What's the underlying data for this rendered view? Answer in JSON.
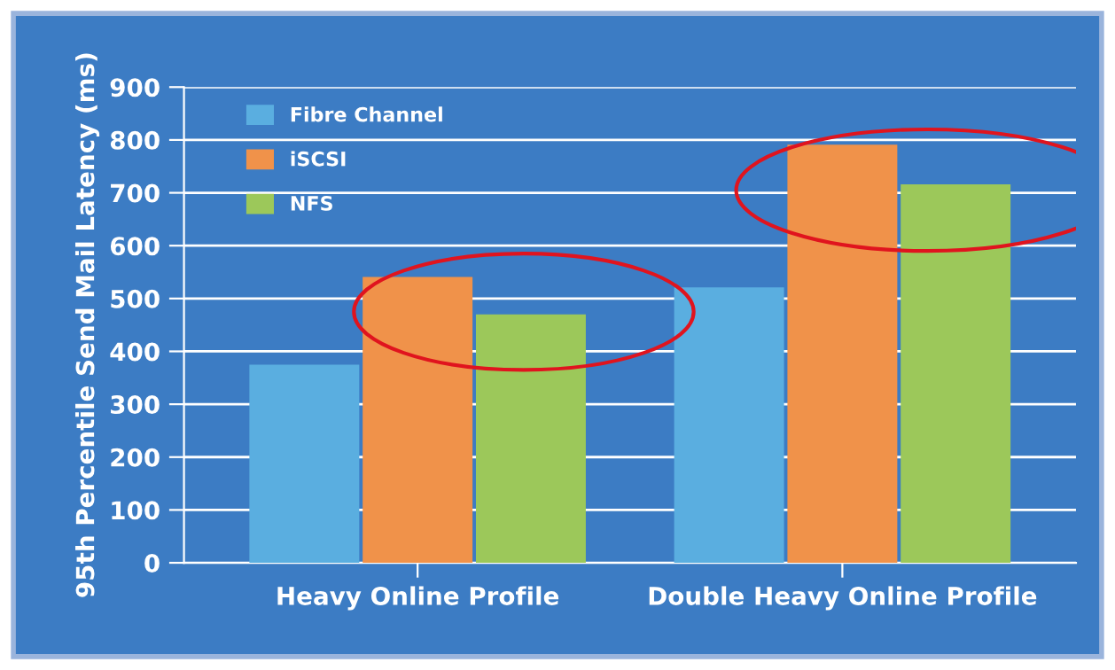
{
  "chart_data": {
    "type": "bar",
    "ylabel": "95th Percentile Send Mail Latency (ms)",
    "categories": [
      "Heavy Online Profile",
      "Double Heavy Online Profile"
    ],
    "series": [
      {
        "name": "Fibre Channel",
        "color": "#5aaee0",
        "values": [
          375,
          521
        ]
      },
      {
        "name": "iSCSI",
        "color": "#f0924a",
        "values": [
          541,
          791
        ]
      },
      {
        "name": "NFS",
        "color": "#9cc85a",
        "values": [
          470,
          716
        ]
      }
    ],
    "ylim": [
      0,
      900
    ],
    "yticks": [
      0,
      100,
      200,
      300,
      400,
      500,
      600,
      700,
      800,
      900
    ],
    "grid": "y",
    "legend": "top left"
  }
}
